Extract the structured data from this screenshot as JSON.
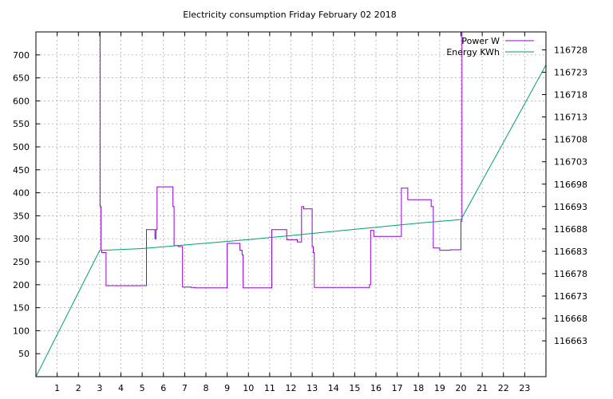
{
  "chart_data": {
    "type": "line",
    "title": "Electricity consumption Friday February 02 2018",
    "xlabel": "",
    "ylabel": "",
    "xlim": [
      0,
      24
    ],
    "ylim": [
      0,
      750
    ],
    "y2lim": [
      116655.0,
      116732.0
    ],
    "x_ticks": [
      1,
      2,
      3,
      4,
      5,
      6,
      7,
      8,
      9,
      10,
      11,
      12,
      13,
      14,
      15,
      16,
      17,
      18,
      19,
      20,
      21,
      22,
      23
    ],
    "y_ticks": [
      50,
      100,
      150,
      200,
      250,
      300,
      350,
      400,
      450,
      500,
      550,
      600,
      650,
      700
    ],
    "y2_ticks": [
      116663,
      116668,
      116673,
      116678,
      116683,
      116688,
      116693,
      116698,
      116703,
      116708,
      116713,
      116718,
      116723,
      116728
    ],
    "grid": true,
    "legend_position": "top-right",
    "series": [
      {
        "name": "Power W",
        "axis": "left",
        "color": "#9400d3",
        "step": true,
        "x": [
          3.0,
          3.02,
          3.06,
          3.1,
          3.3,
          5.2,
          5.6,
          5.65,
          5.7,
          6.45,
          6.5,
          6.7,
          6.9,
          7.3,
          7.5,
          9.0,
          9.1,
          9.6,
          9.7,
          9.75,
          10.8,
          11.1,
          11.8,
          12.3,
          12.5,
          12.6,
          13.0,
          13.05,
          13.1,
          15.7,
          15.75,
          15.9,
          17.2,
          17.5,
          18.6,
          18.7,
          19.0,
          19.5,
          20.0,
          20.05
        ],
        "values": [
          750,
          370,
          275,
          270,
          198,
          320,
          300,
          320,
          413,
          370,
          285,
          283,
          195,
          194,
          193,
          290,
          290,
          275,
          265,
          193,
          193,
          320,
          298,
          293,
          370,
          365,
          283,
          270,
          194,
          200,
          318,
          305,
          410,
          385,
          370,
          280,
          275,
          276,
          338,
          750
        ]
      },
      {
        "name": "Energy KWh",
        "axis": "right",
        "color": "#009e73",
        "step": false,
        "x": [
          0.0,
          3.0,
          5.0,
          10.0,
          15.0,
          18.0,
          20.0,
          24.0
        ],
        "values": [
          116655.0,
          116683.2,
          116683.6,
          116685.6,
          116687.9,
          116689.3,
          116690.1,
          116724.6
        ]
      }
    ]
  }
}
